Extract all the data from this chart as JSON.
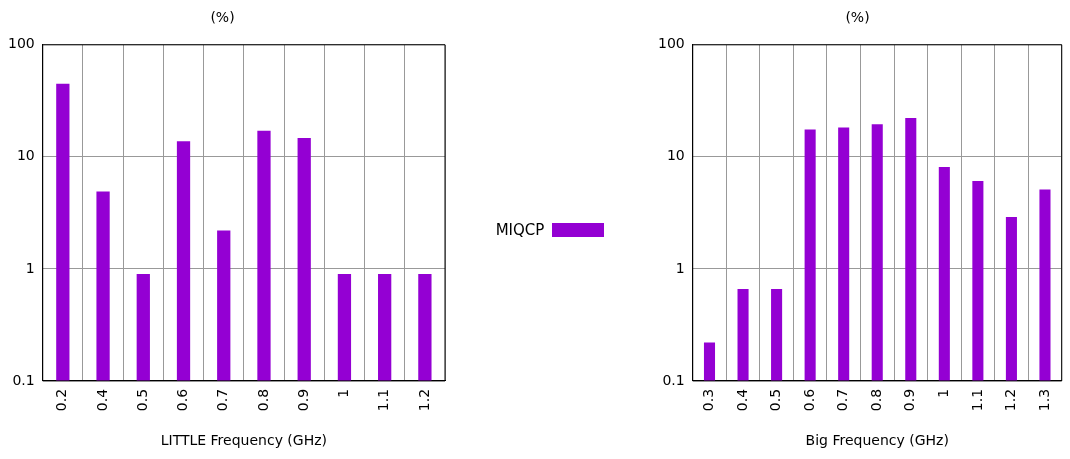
{
  "chart_data": [
    {
      "type": "bar",
      "title": "(%)",
      "xlabel": "LITTLE Frequency (GHz)",
      "categories": [
        "0.2",
        "0.4",
        "0.5",
        "0.6",
        "0.7",
        "0.8",
        "0.9",
        "1",
        "1.1",
        "1.2"
      ],
      "series": [
        {
          "name": "MIQCP",
          "color": "#9400d3",
          "values": [
            45,
            4.9,
            0.9,
            13.8,
            2.2,
            17.1,
            14.7,
            0.9,
            0.9,
            0.9
          ]
        }
      ],
      "log": true,
      "ylim": [
        0.1,
        100
      ],
      "yticks": [
        0.1,
        1,
        10,
        100
      ],
      "grid": true,
      "legend": "right"
    },
    {
      "type": "bar",
      "title": "(%)",
      "xlabel": "Big Frequency (GHz)",
      "categories": [
        "0.3",
        "0.4",
        "0.5",
        "0.6",
        "0.7",
        "0.8",
        "0.9",
        "1",
        "1.1",
        "1.2",
        "1.3"
      ],
      "series": [
        {
          "color": "#9400d3",
          "values": [
            0.22,
            0.66,
            0.66,
            17.5,
            18.3,
            19.5,
            22.2,
            8.1,
            6.1,
            2.9,
            5.1
          ]
        }
      ],
      "log": true,
      "ylim": [
        0.1,
        100
      ],
      "yticks": [
        0.1,
        1,
        10,
        100
      ],
      "grid": true
    }
  ]
}
